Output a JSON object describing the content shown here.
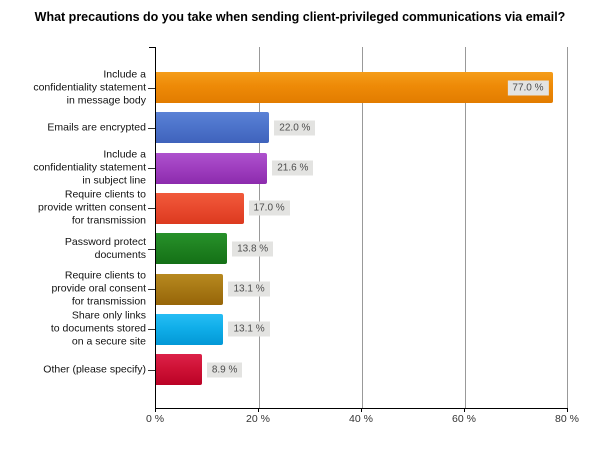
{
  "page": {
    "background": "#ffffff"
  },
  "chart_data": {
    "type": "bar",
    "orientation": "horizontal",
    "title": "What precautions do you take when sending client-privileged communications via email?",
    "categories": [
      "Include a confidentiality statement in message body",
      "Emails are encrypted",
      "Include a confidentiality statement in subject line",
      "Require clients to provide written consent for transmission",
      "Password protect documents",
      "Require clients to provide oral consent for transmission",
      "Share only links to documents stored on a secure site",
      "Other (please specify)"
    ],
    "category_lines": [
      [
        "Include a",
        "confidentiality statement",
        "in message body"
      ],
      [
        "Emails are encrypted"
      ],
      [
        "Include a",
        "confidentiality statement",
        "in subject line"
      ],
      [
        "Require clients to",
        "provide written consent",
        "for transmission"
      ],
      [
        "Password protect",
        "documents"
      ],
      [
        "Require clients to",
        "provide oral consent",
        "for transmission"
      ],
      [
        "Share only links",
        "to documents stored",
        "on a secure site"
      ],
      [
        "Other (please specify)"
      ]
    ],
    "values": [
      77.0,
      22.0,
      21.6,
      17.0,
      13.8,
      13.1,
      13.1,
      8.9
    ],
    "value_labels": [
      "77.0 %",
      "22.0 %",
      "21.6 %",
      "17.0 %",
      "13.8 %",
      "13.1 %",
      "13.1 %",
      "8.9 %"
    ],
    "bar_colors": [
      {
        "base": "#ee8a07",
        "top": "#f59d1a",
        "bottom": "#e27c00"
      },
      {
        "base": "#4d74cb",
        "top": "#5b82d6",
        "bottom": "#3f63bc"
      },
      {
        "base": "#a03fc0",
        "top": "#ae52ce",
        "bottom": "#8c2bad"
      },
      {
        "base": "#e94b2f",
        "top": "#f15a3b",
        "bottom": "#dc3a1f"
      },
      {
        "base": "#1f8221",
        "top": "#27912a",
        "bottom": "#147016"
      },
      {
        "base": "#a87915",
        "top": "#b8891f",
        "bottom": "#976508"
      },
      {
        "base": "#10aee9",
        "top": "#27bdf4",
        "bottom": "#0398d6"
      },
      {
        "base": "#cf1236",
        "top": "#dc2249",
        "bottom": "#ba0226"
      }
    ],
    "xlim": [
      0,
      80
    ],
    "x_tick_values": [
      0,
      20,
      40,
      60,
      80
    ],
    "x_tick_labels": [
      "0 %",
      "20 %",
      "40 %",
      "60 %",
      "80 %"
    ],
    "grid": true,
    "legend": false,
    "inside_label_threshold": 70,
    "axis_color": "#000000",
    "grid_color": "#999999",
    "value_box_bg": "#e3e3e1",
    "value_text_color": "#4d4d4d"
  }
}
